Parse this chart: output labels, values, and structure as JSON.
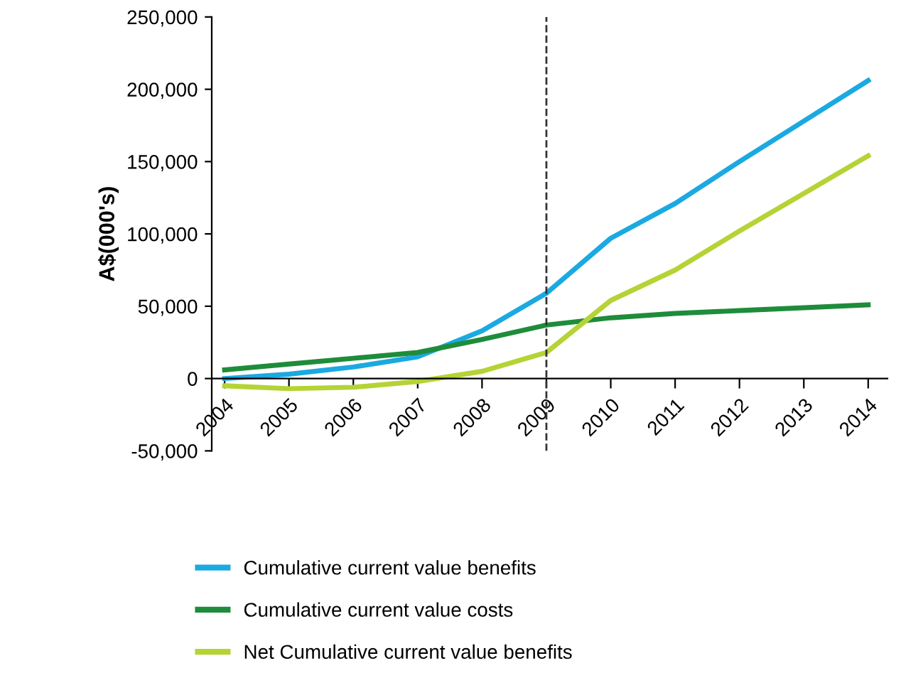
{
  "chart_data": {
    "type": "line",
    "ylabel": "A$(000's)",
    "x": [
      2004,
      2005,
      2006,
      2007,
      2008,
      2009,
      2010,
      2011,
      2012,
      2013,
      2014
    ],
    "xlim": [
      2003.8,
      2014.3
    ],
    "xticks": [
      2004,
      2005,
      2006,
      2007,
      2008,
      2009,
      2010,
      2011,
      2012,
      2013,
      2014
    ],
    "ylim": [
      -50000,
      250000
    ],
    "yticks": [
      {
        "value": -50000,
        "label": "-50,000"
      },
      {
        "value": 0,
        "label": "0"
      },
      {
        "value": 50000,
        "label": "50,000"
      },
      {
        "value": 100000,
        "label": "100,000"
      },
      {
        "value": 150000,
        "label": "150,000"
      },
      {
        "value": 200000,
        "label": "200,000"
      },
      {
        "value": 250000,
        "label": "250,000"
      }
    ],
    "series": [
      {
        "name": "Cumulative current value benefits",
        "color": "#1ba9e1",
        "values": [
          0,
          3000,
          8000,
          15000,
          33000,
          59000,
          97000,
          121000,
          150000,
          178000,
          206000
        ]
      },
      {
        "name": "Cumulative current value costs",
        "color": "#1e8c3a",
        "values": [
          6000,
          10000,
          14000,
          18000,
          27000,
          37000,
          42000,
          45000,
          47000,
          49000,
          51000
        ]
      },
      {
        "name": "Net Cumulative current value benefits",
        "color": "#b5d334",
        "values": [
          -5000,
          -7000,
          -6000,
          -2000,
          5000,
          18000,
          54000,
          75000,
          102000,
          128000,
          154000
        ]
      }
    ],
    "ref_lines": [
      {
        "axis": "x",
        "value": 2009,
        "color": "#333333",
        "line_style": "dashed"
      }
    ],
    "grid": false,
    "legend": "bottom",
    "marker": "none",
    "line_style": "solid"
  }
}
